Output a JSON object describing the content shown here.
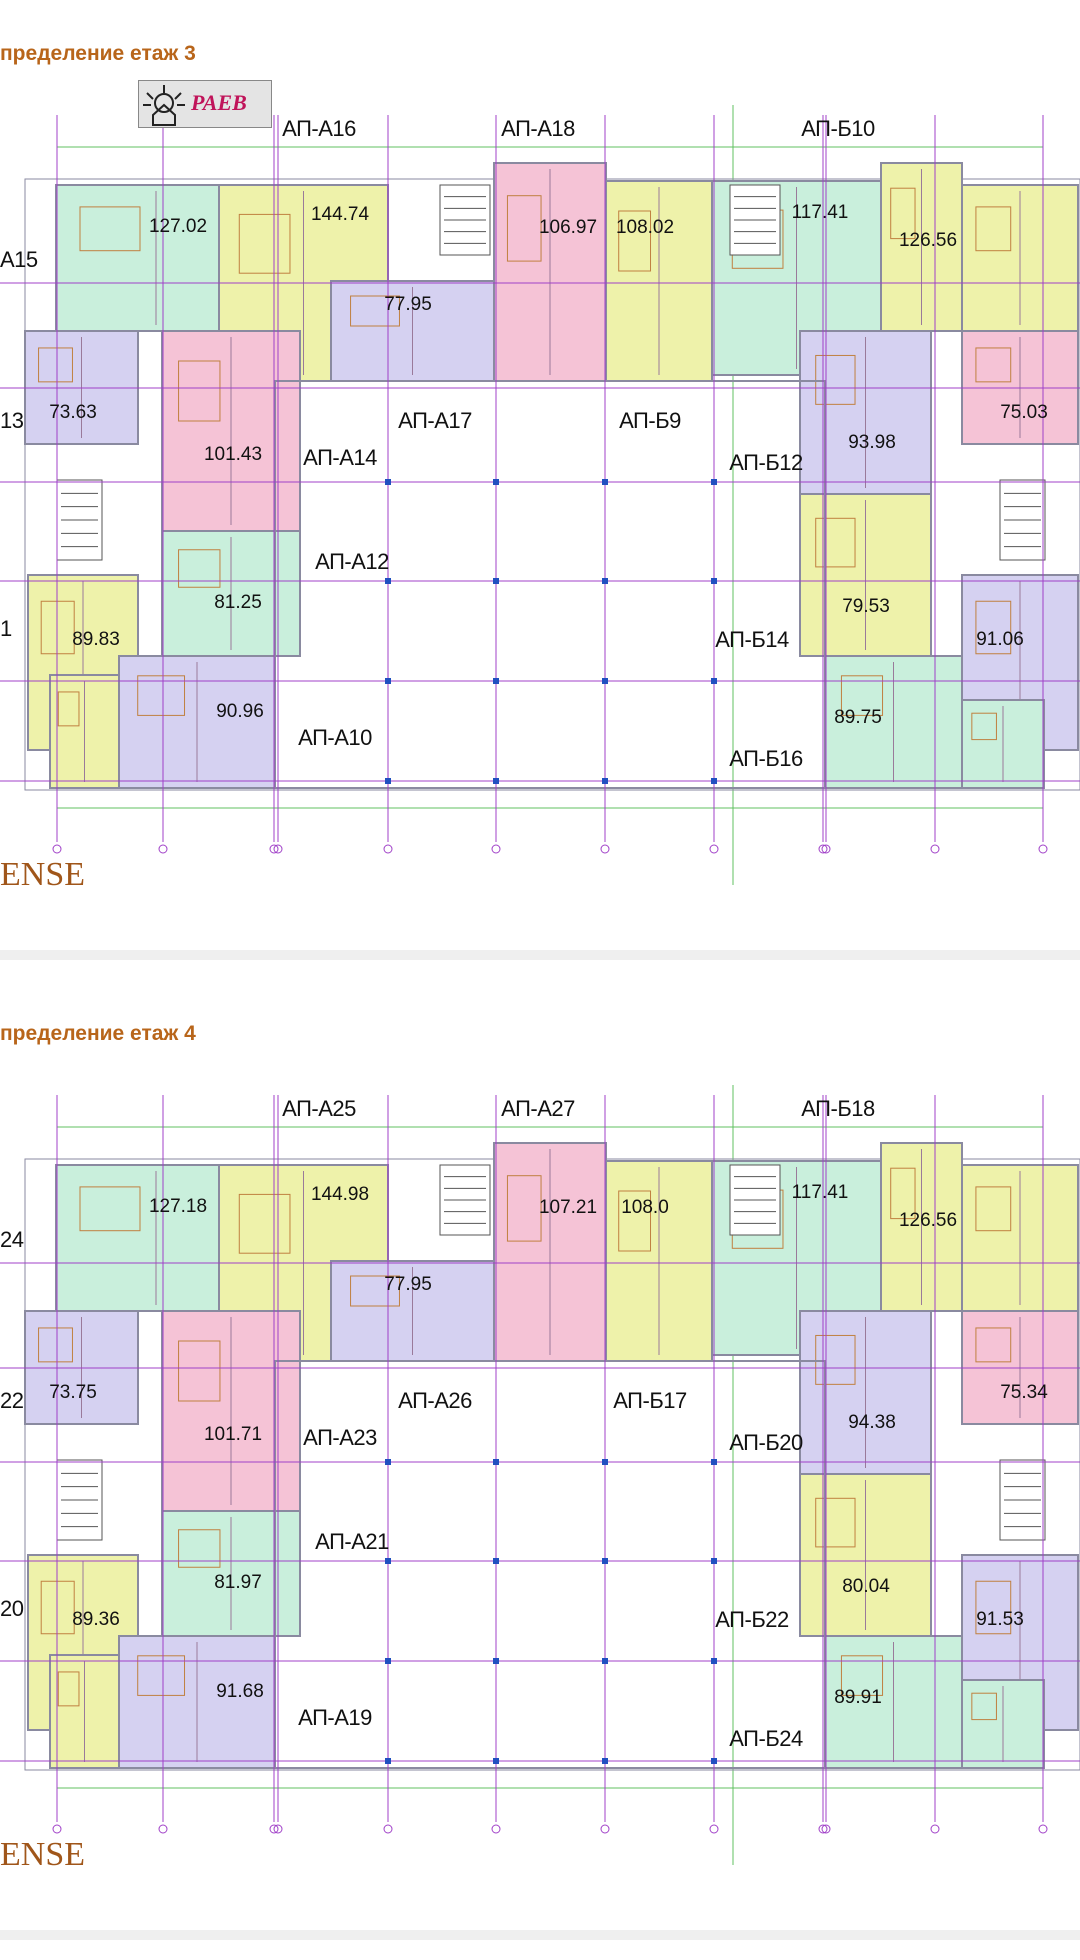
{
  "colors": {
    "green": "#c9efdc",
    "yellow": "#eef2aa",
    "purple": "#d5d1f1",
    "pink": "#f5c3d6",
    "grid": "#a040c8",
    "dimension": "#60c060",
    "wall": "#8a8aa0",
    "title": "#b8651a"
  },
  "floors": [
    {
      "title": "пределение етаж 3",
      "logo_text": "PAEB",
      "footer": "ENSE",
      "unit_colors": [
        "green",
        "yellow",
        "purple",
        "pink",
        "yellow",
        "green",
        "yellow",
        "yellow",
        "purple",
        "pink",
        "green",
        "yellow",
        "purple",
        "yellow",
        "purple",
        "pink",
        "yellow",
        "purple",
        "green",
        "green"
      ],
      "labels": [
        "А15",
        "АП-А16",
        "АП-А18",
        "АП-Б10",
        "13",
        "АП-А17",
        "АП-Б9",
        "АП-А14",
        "АП-Б12",
        "АП-А12",
        "АП-Б14",
        "1",
        "АП-А10",
        "АП-Б16"
      ],
      "areas": [
        "127.02",
        "144.74",
        "106.97",
        "108.02",
        "117.41",
        "126.56",
        "77.95",
        "73.63",
        "75.03",
        "101.43",
        "93.98",
        "81.25",
        "79.53",
        "89.83",
        "91.06",
        "90.96",
        "89.75"
      ]
    },
    {
      "title": "пределение етаж 4",
      "footer": "ENSE",
      "unit_colors": [
        "green",
        "yellow",
        "purple",
        "pink",
        "yellow",
        "green",
        "yellow",
        "yellow",
        "purple",
        "pink",
        "green",
        "yellow",
        "purple",
        "yellow",
        "purple",
        "pink",
        "yellow",
        "purple",
        "green",
        "green"
      ],
      "labels": [
        "24",
        "АП-А25",
        "АП-А27",
        "АП-Б18",
        "22",
        "АП-А26",
        "АП-Б17",
        "АП-А23",
        "АП-Б20",
        "АП-А21",
        "АП-Б22",
        "20",
        "АП-А19",
        "АП-Б24"
      ],
      "areas": [
        "127.18",
        "144.98",
        "107.21",
        "108.0",
        "117.41",
        "126.56",
        "77.95",
        "73.75",
        "75.34",
        "101.71",
        "94.38",
        "81.97",
        "80.04",
        "89.36",
        "91.53",
        "91.68",
        "89.91"
      ]
    }
  ]
}
